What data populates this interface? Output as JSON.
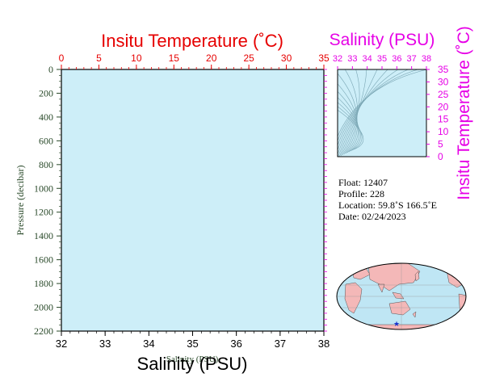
{
  "colors": {
    "temperature_axis": "#e60000",
    "salinity_axis": "#e600e6",
    "pressure_axis": "#2a4a2a",
    "plot_background": "#cdeef8",
    "land": "#f4b8b8",
    "ocean": "#bfe6f4",
    "float_marker": "#1a33cc"
  },
  "chart_data": [
    {
      "type": "line",
      "title": "",
      "top_axis": {
        "label": "Insitu Temperature (˚C)",
        "range": [
          0,
          35
        ],
        "ticks": [
          "0",
          "5",
          "10",
          "15",
          "20",
          "25",
          "30",
          "35"
        ]
      },
      "bottom_axis": {
        "label": "Salinity (PSU)",
        "label_overlap": "Salinity (PSU)",
        "range": [
          32,
          38
        ],
        "ticks": [
          "32",
          "33",
          "34",
          "35",
          "36",
          "37",
          "38"
        ]
      },
      "left_axis": {
        "label": "Pressure (decibar)",
        "range": [
          2200,
          0
        ],
        "ticks": [
          "0",
          "200",
          "400",
          "600",
          "800",
          "1000",
          "1200",
          "1400",
          "1600",
          "1800",
          "2000",
          "2200"
        ]
      },
      "series": []
    },
    {
      "type": "scatter",
      "top_axis": {
        "label": "Salinity (PSU)",
        "range": [
          32,
          38
        ],
        "ticks": [
          "32",
          "33",
          "34",
          "35",
          "36",
          "37",
          "38"
        ]
      },
      "right_axis": {
        "label": "Insitu Temperature (˚C)",
        "range": [
          0,
          35
        ],
        "ticks": [
          "0",
          "5",
          "10",
          "15",
          "20",
          "25",
          "30",
          "35"
        ]
      },
      "density_contours": true,
      "series": []
    }
  ],
  "float_info": {
    "float": "Float:  12407",
    "profile": "Profile:  228",
    "location": "Location:  59.8˚S  166.5˚E",
    "date": "Date:  02/24/2023"
  },
  "map": {
    "marker_lat": -59.8,
    "marker_lon": 166.5,
    "marker_symbol": "★"
  }
}
